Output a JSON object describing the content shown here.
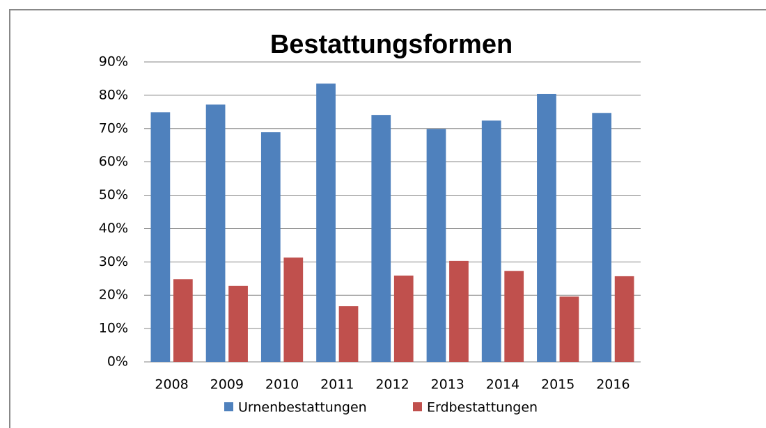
{
  "chart_data": {
    "type": "bar",
    "title": "Bestattungsformen",
    "categories": [
      "2008",
      "2009",
      "2010",
      "2011",
      "2012",
      "2013",
      "2014",
      "2015",
      "2016"
    ],
    "series": [
      {
        "name": "Urnenbestattungen",
        "color": "#4f81bd",
        "values": [
          74.9,
          77.2,
          68.9,
          83.5,
          74.1,
          69.9,
          72.4,
          80.4,
          74.7
        ]
      },
      {
        "name": "Erdbestattungen",
        "color": "#c0504d",
        "values": [
          24.8,
          22.8,
          31.3,
          16.7,
          25.9,
          30.3,
          27.3,
          19.6,
          25.7
        ]
      }
    ],
    "ylim": [
      0,
      90
    ],
    "yticks": [
      {
        "value": 0,
        "label": "0%"
      },
      {
        "value": 10,
        "label": "10%"
      },
      {
        "value": 20,
        "label": "20%"
      },
      {
        "value": 30,
        "label": "30%"
      },
      {
        "value": 40,
        "label": "40%"
      },
      {
        "value": 50,
        "label": "50%"
      },
      {
        "value": 60,
        "label": "60%"
      },
      {
        "value": 70,
        "label": "70%"
      },
      {
        "value": 80,
        "label": "80%"
      },
      {
        "value": 90,
        "label": "90%"
      }
    ],
    "grid": true,
    "legend": "bottom"
  }
}
